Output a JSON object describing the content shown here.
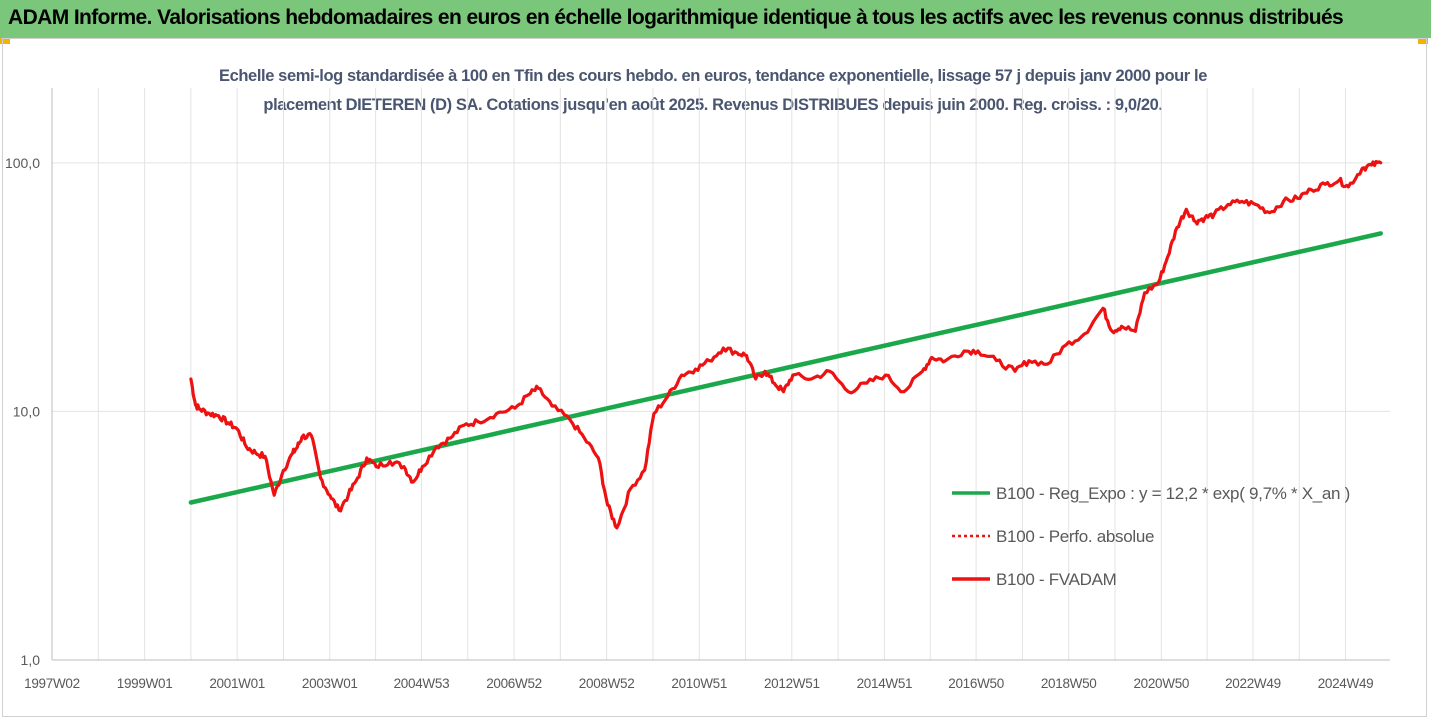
{
  "banner": {
    "title": "ADAM Informe. Valorisations hebdomadaires en euros en échelle logarithmique identique à tous les actifs avec les revenus connus distribués"
  },
  "colors": {
    "banner_bg": "#7ac67a",
    "regression": "#1aa84a",
    "fvadam": "#ee1111",
    "perfo": "#ee1111",
    "title_text": "#4a5670",
    "grid": "#e3e3e3"
  },
  "chart_data": {
    "type": "line",
    "title_lines": [
      "Echelle semi-log standardisée à 100 en Tfin des cours hebdo. en euros, tendance exponentielle, lissage 57 j depuis janv 2000 pour le",
      "placement DIETEREN (D) SA. Cotations jusqu'en août 2025. Revenus DISTRIBUES depuis juin 2000. Reg. croiss. : 9,0/20."
    ],
    "y_scale": "log",
    "ylim": [
      1,
      200
    ],
    "y_ticks": [
      {
        "value": 1,
        "label": "1,0"
      },
      {
        "value": 10,
        "label": "10,0"
      },
      {
        "value": 100,
        "label": "100,0"
      }
    ],
    "xlim": [
      1997.0,
      2025.9
    ],
    "x_ticks": [
      {
        "x": 1997.0,
        "label": "1997W02"
      },
      {
        "x": 1999.0,
        "label": "1999W01"
      },
      {
        "x": 2001.0,
        "label": "2001W01"
      },
      {
        "x": 2003.0,
        "label": "2003W01"
      },
      {
        "x": 2004.98,
        "label": "2004W53"
      },
      {
        "x": 2006.98,
        "label": "2006W52"
      },
      {
        "x": 2008.98,
        "label": "2008W52"
      },
      {
        "x": 2010.98,
        "label": "2010W51"
      },
      {
        "x": 2012.98,
        "label": "2012W51"
      },
      {
        "x": 2014.98,
        "label": "2014W51"
      },
      {
        "x": 2016.96,
        "label": "2016W50"
      },
      {
        "x": 2018.96,
        "label": "2018W50"
      },
      {
        "x": 2020.96,
        "label": "2020W50"
      },
      {
        "x": 2022.94,
        "label": "2022W49"
      },
      {
        "x": 2024.94,
        "label": "2024W49"
      }
    ],
    "grid": "vertical",
    "legend_position": "right-center",
    "series": [
      {
        "name": "B100 - Reg_Expo : y = 12,2 * exp( 9,7% *  X_an )",
        "key": "regression",
        "style": "solid-green",
        "x": [
          2000.0,
          2025.7
        ],
        "y": [
          4.3,
          52.0
        ]
      },
      {
        "name": "B100 - Perfo. absolue",
        "key": "perfo",
        "style": "dotted-red",
        "x": [],
        "y": []
      },
      {
        "name": "B100 - FVADAM",
        "key": "fvadam",
        "style": "solid-red",
        "x": [
          2000.0,
          2000.1,
          2000.2,
          2000.4,
          2000.6,
          2000.8,
          2001.0,
          2001.2,
          2001.4,
          2001.6,
          2001.8,
          2002.0,
          2002.2,
          2002.3,
          2002.4,
          2002.6,
          2002.8,
          2003.0,
          2003.2,
          2003.4,
          2003.6,
          2003.8,
          2004.0,
          2004.3,
          2004.6,
          2004.8,
          2005.0,
          2005.3,
          2005.6,
          2005.9,
          2006.2,
          2006.6,
          2007.0,
          2007.3,
          2007.5,
          2007.8,
          2008.2,
          2008.5,
          2008.8,
          2009.0,
          2009.2,
          2009.5,
          2009.8,
          2010.0,
          2010.3,
          2010.6,
          2010.9,
          2011.2,
          2011.5,
          2011.8,
          2012.0,
          2012.2,
          2012.4,
          2012.6,
          2012.8,
          2013.0,
          2013.4,
          2013.8,
          2014.2,
          2014.6,
          2015.0,
          2015.4,
          2015.8,
          2016.0,
          2016.3,
          2016.7,
          2017.0,
          2017.4,
          2017.8,
          2018.1,
          2018.5,
          2018.9,
          2019.3,
          2019.7,
          2019.9,
          2020.1,
          2020.4,
          2020.6,
          2020.9,
          2021.1,
          2021.3,
          2021.5,
          2021.7,
          2021.9,
          2022.1,
          2022.4,
          2022.7,
          2023.0,
          2023.3,
          2023.6,
          2023.9,
          2024.2,
          2024.5,
          2024.8,
          2025.0,
          2025.3,
          2025.5,
          2025.7
        ],
        "y": [
          13.5,
          10.6,
          10.2,
          9.8,
          9.6,
          9.0,
          8.5,
          7.2,
          6.8,
          6.6,
          4.6,
          5.8,
          6.8,
          7.2,
          7.9,
          8.0,
          5.4,
          4.6,
          4.0,
          4.6,
          5.4,
          6.5,
          6.0,
          6.3,
          6.0,
          5.2,
          6.0,
          7.2,
          7.8,
          8.8,
          9.1,
          9.8,
          10.3,
          11.7,
          12.4,
          10.5,
          9.2,
          7.8,
          6.5,
          4.2,
          3.4,
          4.9,
          5.8,
          9.8,
          11.5,
          14.0,
          14.8,
          16.0,
          18.0,
          17.2,
          16.8,
          13.5,
          14.5,
          13.0,
          12.0,
          14.0,
          13.5,
          14.5,
          12.0,
          13.0,
          14.0,
          12.0,
          14.5,
          16.5,
          16.0,
          17.5,
          17.5,
          16.0,
          14.5,
          16.0,
          15.5,
          18.5,
          20.5,
          26.0,
          21.0,
          22.0,
          21.0,
          30.0,
          33.0,
          42.0,
          55.0,
          65.0,
          58.0,
          60.0,
          62.0,
          68.0,
          70.0,
          68.0,
          63.0,
          70.0,
          72.0,
          78.0,
          82.0,
          85.0,
          80.0,
          95.0,
          98.0,
          100.0
        ]
      }
    ]
  }
}
